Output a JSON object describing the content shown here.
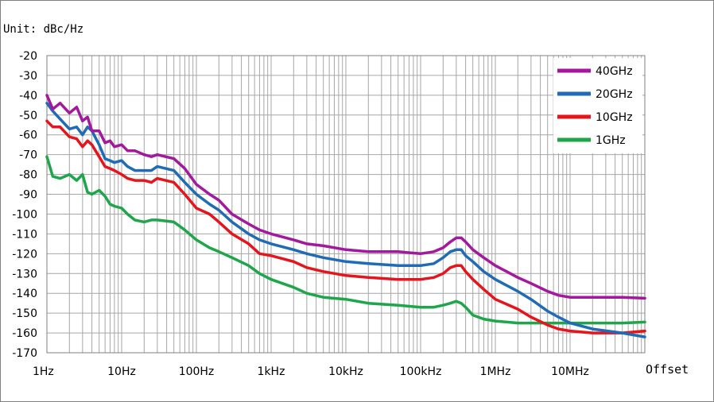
{
  "chart_data": {
    "type": "line",
    "unit_label": "Unit: dBc/Hz",
    "xlabel": "Offset",
    "x_scale": "log",
    "xlim": [
      1,
      100000000
    ],
    "x_ticks": [
      {
        "value": 1,
        "label": "1Hz"
      },
      {
        "value": 10,
        "label": "10Hz"
      },
      {
        "value": 100,
        "label": "100Hz"
      },
      {
        "value": 1000,
        "label": "1kHz"
      },
      {
        "value": 10000,
        "label": "10kHz"
      },
      {
        "value": 100000,
        "label": "100kHz"
      },
      {
        "value": 1000000,
        "label": "1MHz"
      },
      {
        "value": 10000000,
        "label": "10MHz"
      }
    ],
    "ylim": [
      -170,
      -20
    ],
    "y_ticks": [
      "-20",
      "-30",
      "-40",
      "-50",
      "-60",
      "-70",
      "-80",
      "-90",
      "-100",
      "-110",
      "-120",
      "-130",
      "-140",
      "-150",
      "-160",
      "-170"
    ],
    "grid": true,
    "legend_position": "top-right",
    "series": [
      {
        "name": "40GHz",
        "color": "#a3189c",
        "points": [
          [
            1,
            -40
          ],
          [
            1.2,
            -47
          ],
          [
            1.5,
            -44
          ],
          [
            2,
            -49
          ],
          [
            2.5,
            -46
          ],
          [
            3,
            -53
          ],
          [
            3.5,
            -51
          ],
          [
            4,
            -58
          ],
          [
            5,
            -58
          ],
          [
            6,
            -64
          ],
          [
            7,
            -63
          ],
          [
            8,
            -66
          ],
          [
            10,
            -65
          ],
          [
            12,
            -68
          ],
          [
            15,
            -68
          ],
          [
            20,
            -70
          ],
          [
            25,
            -71
          ],
          [
            30,
            -70
          ],
          [
            50,
            -72
          ],
          [
            70,
            -77
          ],
          [
            100,
            -85
          ],
          [
            150,
            -90
          ],
          [
            200,
            -93
          ],
          [
            300,
            -100
          ],
          [
            500,
            -105
          ],
          [
            700,
            -108
          ],
          [
            1000,
            -110
          ],
          [
            2000,
            -113
          ],
          [
            3000,
            -115
          ],
          [
            5000,
            -116
          ],
          [
            10000,
            -118
          ],
          [
            20000,
            -119
          ],
          [
            50000,
            -119
          ],
          [
            100000,
            -120
          ],
          [
            150000,
            -119
          ],
          [
            200000,
            -117
          ],
          [
            250000,
            -114
          ],
          [
            300000,
            -112
          ],
          [
            350000,
            -112
          ],
          [
            400000,
            -114
          ],
          [
            500000,
            -118
          ],
          [
            700000,
            -122
          ],
          [
            1000000,
            -126
          ],
          [
            2000000,
            -132
          ],
          [
            3000000,
            -135
          ],
          [
            5000000,
            -139
          ],
          [
            7000000,
            -141
          ],
          [
            10000000,
            -142
          ],
          [
            20000000,
            -142
          ],
          [
            50000000,
            -142
          ],
          [
            100000000,
            -142.5
          ]
        ]
      },
      {
        "name": "20GHz",
        "color": "#1f6bb6",
        "points": [
          [
            1,
            -44
          ],
          [
            1.2,
            -48
          ],
          [
            1.5,
            -52
          ],
          [
            2,
            -57
          ],
          [
            2.5,
            -56
          ],
          [
            3,
            -60
          ],
          [
            3.5,
            -56
          ],
          [
            4,
            -58
          ],
          [
            5,
            -65
          ],
          [
            6,
            -72
          ],
          [
            7,
            -73
          ],
          [
            8,
            -74
          ],
          [
            10,
            -73
          ],
          [
            12,
            -76
          ],
          [
            15,
            -78
          ],
          [
            20,
            -78
          ],
          [
            25,
            -78
          ],
          [
            30,
            -76
          ],
          [
            50,
            -78
          ],
          [
            70,
            -84
          ],
          [
            100,
            -90
          ],
          [
            150,
            -95
          ],
          [
            200,
            -98
          ],
          [
            300,
            -104
          ],
          [
            500,
            -110
          ],
          [
            700,
            -113
          ],
          [
            1000,
            -115
          ],
          [
            2000,
            -118
          ],
          [
            3000,
            -120
          ],
          [
            5000,
            -122
          ],
          [
            10000,
            -124
          ],
          [
            20000,
            -125
          ],
          [
            50000,
            -126
          ],
          [
            100000,
            -126
          ],
          [
            150000,
            -125
          ],
          [
            200000,
            -122
          ],
          [
            250000,
            -119
          ],
          [
            300000,
            -118
          ],
          [
            350000,
            -118
          ],
          [
            400000,
            -121
          ],
          [
            500000,
            -124
          ],
          [
            700000,
            -129
          ],
          [
            1000000,
            -133
          ],
          [
            2000000,
            -139
          ],
          [
            3000000,
            -143
          ],
          [
            5000000,
            -149
          ],
          [
            7000000,
            -152
          ],
          [
            10000000,
            -155
          ],
          [
            20000000,
            -158
          ],
          [
            50000000,
            -160
          ],
          [
            100000000,
            -162
          ]
        ]
      },
      {
        "name": "10GHz",
        "color": "#e6141c",
        "points": [
          [
            1,
            -53
          ],
          [
            1.2,
            -56
          ],
          [
            1.5,
            -56
          ],
          [
            2,
            -61
          ],
          [
            2.5,
            -62
          ],
          [
            3,
            -66
          ],
          [
            3.5,
            -63
          ],
          [
            4,
            -65
          ],
          [
            5,
            -71
          ],
          [
            6,
            -76
          ],
          [
            7,
            -77
          ],
          [
            8,
            -78
          ],
          [
            10,
            -80
          ],
          [
            12,
            -82
          ],
          [
            15,
            -83
          ],
          [
            20,
            -83
          ],
          [
            25,
            -84
          ],
          [
            30,
            -82
          ],
          [
            50,
            -84
          ],
          [
            70,
            -90
          ],
          [
            100,
            -97
          ],
          [
            150,
            -100
          ],
          [
            200,
            -104
          ],
          [
            300,
            -110
          ],
          [
            500,
            -115
          ],
          [
            700,
            -120
          ],
          [
            1000,
            -121
          ],
          [
            2000,
            -124
          ],
          [
            3000,
            -127
          ],
          [
            5000,
            -129
          ],
          [
            10000,
            -131
          ],
          [
            20000,
            -132
          ],
          [
            50000,
            -133
          ],
          [
            100000,
            -133
          ],
          [
            150000,
            -132
          ],
          [
            200000,
            -130
          ],
          [
            250000,
            -127
          ],
          [
            300000,
            -126
          ],
          [
            350000,
            -126
          ],
          [
            400000,
            -129
          ],
          [
            500000,
            -133
          ],
          [
            700000,
            -138
          ],
          [
            1000000,
            -143
          ],
          [
            2000000,
            -148
          ],
          [
            3000000,
            -152
          ],
          [
            5000000,
            -156
          ],
          [
            7000000,
            -158
          ],
          [
            10000000,
            -159
          ],
          [
            20000000,
            -160
          ],
          [
            50000000,
            -160
          ],
          [
            100000000,
            -159
          ]
        ]
      },
      {
        "name": "1GHz",
        "color": "#1ea64a",
        "points": [
          [
            1,
            -71
          ],
          [
            1.2,
            -81
          ],
          [
            1.5,
            -82
          ],
          [
            2,
            -80
          ],
          [
            2.5,
            -83
          ],
          [
            3,
            -80
          ],
          [
            3.5,
            -89
          ],
          [
            4,
            -90
          ],
          [
            5,
            -88
          ],
          [
            6,
            -91
          ],
          [
            7,
            -95
          ],
          [
            8,
            -96
          ],
          [
            10,
            -97
          ],
          [
            12,
            -100
          ],
          [
            15,
            -103
          ],
          [
            20,
            -104
          ],
          [
            25,
            -103
          ],
          [
            30,
            -103
          ],
          [
            50,
            -104
          ],
          [
            70,
            -108
          ],
          [
            100,
            -113
          ],
          [
            150,
            -117
          ],
          [
            200,
            -119
          ],
          [
            300,
            -122
          ],
          [
            500,
            -126
          ],
          [
            700,
            -130
          ],
          [
            1000,
            -133
          ],
          [
            2000,
            -137
          ],
          [
            3000,
            -140
          ],
          [
            5000,
            -142
          ],
          [
            10000,
            -143
          ],
          [
            20000,
            -145
          ],
          [
            50000,
            -146
          ],
          [
            100000,
            -147
          ],
          [
            150000,
            -147
          ],
          [
            200000,
            -146
          ],
          [
            250000,
            -145
          ],
          [
            300000,
            -144
          ],
          [
            350000,
            -145
          ],
          [
            400000,
            -147
          ],
          [
            500000,
            -151
          ],
          [
            700000,
            -153
          ],
          [
            1000000,
            -154
          ],
          [
            2000000,
            -155
          ],
          [
            5000000,
            -155
          ],
          [
            10000000,
            -155
          ],
          [
            20000000,
            -155
          ],
          [
            50000000,
            -155
          ],
          [
            100000000,
            -154.5
          ]
        ]
      }
    ]
  }
}
